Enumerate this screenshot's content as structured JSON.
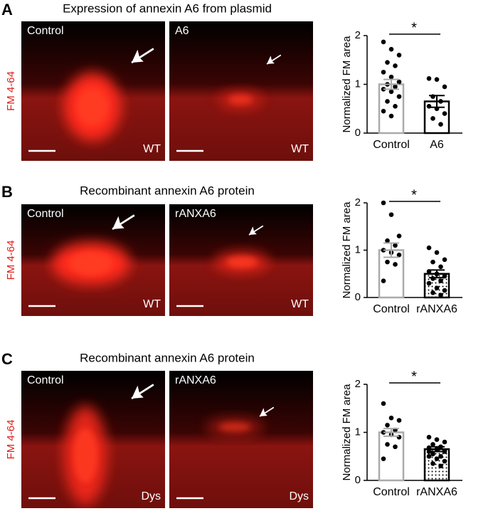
{
  "panels": [
    {
      "letter": "A",
      "heading": "Expression of annexin A6 from plasmid",
      "stain": "FM 4-64",
      "images": [
        {
          "label": "Control",
          "tag": "WT"
        },
        {
          "label": "A6",
          "tag": "WT"
        }
      ]
    },
    {
      "letter": "B",
      "heading": "Recombinant annexin A6 protein",
      "stain": "FM 4-64",
      "images": [
        {
          "label": "Control",
          "tag": "WT"
        },
        {
          "label": "rANXA6",
          "tag": "WT"
        }
      ]
    },
    {
      "letter": "C",
      "heading": "Recombinant annexin A6 protein",
      "stain": "FM 4-64",
      "images": [
        {
          "label": "Control",
          "tag": "Dys"
        },
        {
          "label": "rANXA6",
          "tag": "Dys"
        }
      ]
    }
  ],
  "chart_data": [
    {
      "type": "bar",
      "ylabel": "Normalized FM area",
      "categories": [
        "Control",
        "A6"
      ],
      "values": [
        1.0,
        0.65
      ],
      "errors": [
        0.1,
        0.12
      ],
      "points": [
        [
          1.87,
          1.72,
          1.6,
          1.45,
          1.38,
          1.25,
          1.15,
          1.05,
          1.0,
          0.95,
          0.9,
          0.85,
          0.75,
          0.65,
          0.55,
          0.45,
          0.35
        ],
        [
          1.12,
          1.1,
          0.95,
          0.75,
          0.65,
          0.55,
          0.5,
          0.4,
          0.3,
          0.18
        ]
      ],
      "edge_colors": [
        "#aaaaaa",
        "#000000"
      ],
      "patterns": [
        "none",
        "none"
      ],
      "ylim": [
        0,
        2
      ],
      "yticks": [
        0,
        1,
        2
      ],
      "significance": "*"
    },
    {
      "type": "bar",
      "ylabel": "Normalized FM area",
      "categories": [
        "Control",
        "rANXA6"
      ],
      "values": [
        1.0,
        0.5
      ],
      "errors": [
        0.15,
        0.08
      ],
      "points": [
        [
          2.0,
          1.75,
          1.3,
          1.2,
          1.1,
          1.0,
          0.95,
          0.9,
          0.75,
          0.7,
          0.35
        ],
        [
          1.05,
          0.95,
          0.8,
          0.75,
          0.65,
          0.55,
          0.5,
          0.45,
          0.4,
          0.35,
          0.3,
          0.2,
          0.15,
          0.1,
          0.05
        ]
      ],
      "edge_colors": [
        "#aaaaaa",
        "#000000"
      ],
      "patterns": [
        "none",
        "dots"
      ],
      "ylim": [
        0,
        2
      ],
      "yticks": [
        0,
        1,
        2
      ],
      "significance": "*"
    },
    {
      "type": "bar",
      "ylabel": "Normalized FM area",
      "categories": [
        "Control",
        "rANXA6"
      ],
      "values": [
        1.0,
        0.65
      ],
      "errors": [
        0.08,
        0.05
      ],
      "points": [
        [
          1.6,
          1.3,
          1.25,
          1.15,
          1.05,
          1.0,
          0.95,
          0.9,
          0.75,
          0.7,
          0.45
        ],
        [
          0.9,
          0.85,
          0.8,
          0.75,
          0.7,
          0.68,
          0.65,
          0.6,
          0.55,
          0.5,
          0.5,
          0.45,
          0.4,
          0.35,
          0.3,
          0.6
        ]
      ],
      "edge_colors": [
        "#aaaaaa",
        "#000000"
      ],
      "patterns": [
        "none",
        "dots"
      ],
      "ylim": [
        0,
        2
      ],
      "yticks": [
        0,
        1,
        2
      ],
      "significance": "*"
    }
  ]
}
